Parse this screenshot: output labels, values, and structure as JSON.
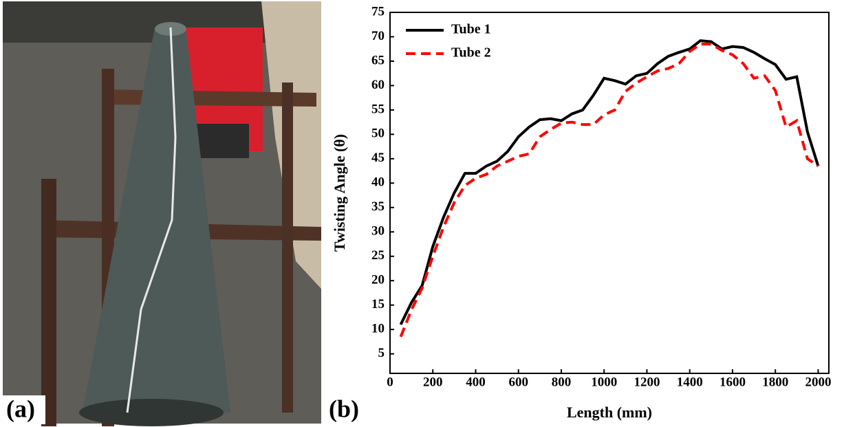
{
  "photo_label": "(a)",
  "chart_data": {
    "type": "line",
    "panel_label": "(b)",
    "x_label": "Length (mm)",
    "y_label": "Twisting Angle (θ)",
    "x": [
      50,
      100,
      150,
      200,
      250,
      300,
      350,
      400,
      450,
      500,
      550,
      600,
      650,
      700,
      750,
      800,
      850,
      900,
      950,
      1000,
      1050,
      1100,
      1150,
      1200,
      1250,
      1300,
      1350,
      1400,
      1450,
      1500,
      1550,
      1600,
      1650,
      1700,
      1750,
      1800,
      1850,
      1900,
      1950,
      2000
    ],
    "series": [
      {
        "name": "Tube 1",
        "color": "#000000",
        "dash": "solid",
        "values": [
          11,
          15.5,
          19,
          27,
          33,
          38,
          42,
          42,
          43.5,
          44.5,
          46.5,
          49.5,
          51.5,
          53,
          53.2,
          52.8,
          54.2,
          55,
          58,
          61.5,
          61,
          60.3,
          62,
          62.5,
          64.5,
          66,
          66.8,
          67.5,
          69.2,
          69,
          67.5,
          68,
          67.8,
          66.8,
          65.5,
          64.3,
          61.3,
          61.8,
          50.5,
          43.5
        ]
      },
      {
        "name": "Tube 2",
        "color": "#ff0000",
        "dash": "dashed",
        "values": [
          8.5,
          14,
          18.5,
          25,
          31,
          36,
          39.5,
          41,
          41.8,
          43.5,
          44.5,
          45.5,
          46,
          49.5,
          51,
          52.3,
          52.5,
          52,
          52,
          54,
          55,
          58.8,
          60.5,
          61.8,
          63,
          63.5,
          64.5,
          67,
          68.5,
          68.5,
          67.2,
          66.3,
          64.5,
          61.5,
          62,
          59,
          51.5,
          52.8,
          45,
          43.5
        ]
      }
    ],
    "xlim": [
      0,
      2050
    ],
    "xticks": [
      0,
      200,
      400,
      600,
      800,
      1000,
      1200,
      1400,
      1600,
      1800,
      2000
    ],
    "ylim": [
      1,
      75
    ],
    "yticks": [
      5,
      10,
      15,
      20,
      25,
      30,
      35,
      40,
      45,
      50,
      55,
      60,
      65,
      70,
      75
    ],
    "legend": "upper-left",
    "grid": false
  }
}
